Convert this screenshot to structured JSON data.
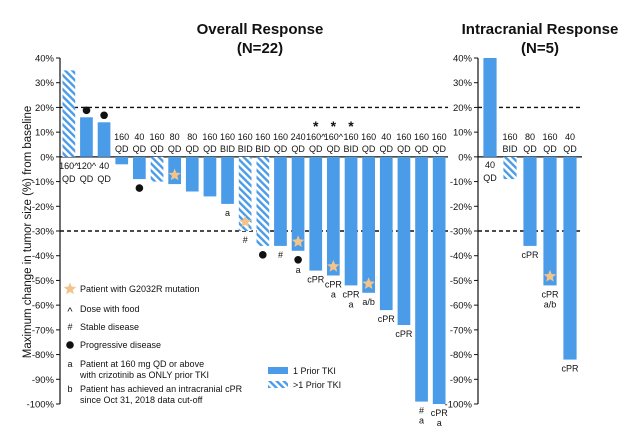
{
  "chart_data": [
    {
      "type": "bar",
      "panel": "overall",
      "title": "Overall Response",
      "subtitle": "(N=22)",
      "ylabel": "Maximum change in tumor size (%) from baseline",
      "ylim": [
        -100,
        40
      ],
      "yticks": [
        40,
        30,
        20,
        10,
        0,
        -10,
        -20,
        -30,
        -40,
        -50,
        -60,
        -70,
        -80,
        -90,
        -100
      ],
      "reference_lines": [
        20,
        -30
      ],
      "bars": [
        {
          "value": 35,
          "dose": [
            "160^",
            "QD"
          ],
          "hatched": true,
          "marks": []
        },
        {
          "value": 16,
          "dose": [
            "120^",
            "QD"
          ],
          "hatched": false,
          "marks": [
            "progressive"
          ]
        },
        {
          "value": 14,
          "dose": [
            "40",
            "QD"
          ],
          "hatched": false,
          "marks": [
            "progressive"
          ]
        },
        {
          "value": -3,
          "dose": [
            "160",
            "QD"
          ],
          "hatched": false,
          "marks": []
        },
        {
          "value": -9,
          "dose": [
            "40",
            "QD"
          ],
          "hatched": false,
          "marks": [
            "progressive"
          ]
        },
        {
          "value": -10,
          "dose": [
            "160",
            "QD"
          ],
          "hatched": true,
          "marks": []
        },
        {
          "value": -11,
          "dose": [
            "80",
            "QD"
          ],
          "hatched": false,
          "marks": [
            "star"
          ]
        },
        {
          "value": -14,
          "dose": [
            "80",
            "QD"
          ],
          "hatched": false,
          "marks": []
        },
        {
          "value": -16,
          "dose": [
            "160",
            "QD"
          ],
          "hatched": false,
          "marks": []
        },
        {
          "value": -19,
          "dose": [
            "160",
            "BID"
          ],
          "hatched": false,
          "marks": [
            "a"
          ]
        },
        {
          "value": -30,
          "dose": [
            "160",
            "BID"
          ],
          "hatched": true,
          "marks": [
            "star",
            "#"
          ]
        },
        {
          "value": -36,
          "dose": [
            "160",
            "BID"
          ],
          "hatched": true,
          "marks": [
            "progressive"
          ]
        },
        {
          "value": -36,
          "dose": [
            "160",
            "QD"
          ],
          "hatched": false,
          "marks": [
            "#"
          ]
        },
        {
          "value": -38,
          "dose": [
            "240",
            "QD"
          ],
          "hatched": false,
          "marks": [
            "star",
            "progressive",
            "a"
          ]
        },
        {
          "value": -46,
          "dose": [
            "160^",
            "QD"
          ],
          "hatched": false,
          "marks": [
            "cPR"
          ],
          "note": "*"
        },
        {
          "value": -48,
          "dose": [
            "160^",
            "QD"
          ],
          "hatched": false,
          "marks": [
            "star",
            "cPR",
            "a"
          ],
          "note": "*"
        },
        {
          "value": -52,
          "dose": [
            "160",
            "BID"
          ],
          "hatched": false,
          "marks": [
            "cPR",
            "a"
          ],
          "note": "*"
        },
        {
          "value": -55,
          "dose": [
            "160",
            "QD"
          ],
          "hatched": false,
          "marks": [
            "star",
            "a/b"
          ]
        },
        {
          "value": -62,
          "dose": [
            "40",
            "QD"
          ],
          "hatched": false,
          "marks": [
            "cPR"
          ]
        },
        {
          "value": -68,
          "dose": [
            "160",
            "QD"
          ],
          "hatched": false,
          "marks": [
            "cPR"
          ]
        },
        {
          "value": -99,
          "dose": [
            "160",
            "QD"
          ],
          "hatched": false,
          "marks": [
            "#",
            "a"
          ]
        },
        {
          "value": -100,
          "dose": [
            "160",
            "QD"
          ],
          "hatched": false,
          "marks": [
            "cPR",
            "a"
          ]
        }
      ]
    },
    {
      "type": "bar",
      "panel": "intracranial",
      "title": "Intracranial Response",
      "subtitle": "(N=5)",
      "ylim": [
        -100,
        40
      ],
      "yticks": [
        40,
        30,
        20,
        10,
        0,
        -10,
        -20,
        -30,
        -40,
        -50,
        -60,
        -70,
        -80,
        -90,
        -100
      ],
      "reference_lines": [
        20,
        -30
      ],
      "bars": [
        {
          "value": 40,
          "dose": [
            "40",
            "QD"
          ],
          "hatched": false,
          "marks": []
        },
        {
          "value": -9,
          "dose": [
            "160",
            "BID"
          ],
          "hatched": true,
          "marks": []
        },
        {
          "value": -36,
          "dose": [
            "80",
            "QD"
          ],
          "hatched": false,
          "marks": [
            "cPR"
          ]
        },
        {
          "value": -52,
          "dose": [
            "160",
            "QD"
          ],
          "hatched": false,
          "marks": [
            "star",
            "cPR",
            "a/b"
          ]
        },
        {
          "value": -82,
          "dose": [
            "40",
            "QD"
          ],
          "hatched": false,
          "marks": [
            "cPR"
          ]
        }
      ]
    }
  ],
  "legend": {
    "symbols": [
      {
        "symbol": "star",
        "label": "Patient with G2032R mutation"
      },
      {
        "symbol": "^",
        "label": "Dose with food"
      },
      {
        "symbol": "#",
        "label": "Stable disease"
      },
      {
        "symbol": "dot",
        "label": "Progressive disease"
      },
      {
        "symbol": "a",
        "label": "Patient at 160 mg QD or above",
        "label2": "with crizotinib as ONLY prior TKI"
      },
      {
        "symbol": "b",
        "label": "Patient has achieved an intracranial cPR",
        "label2": "since Oct 31, 2018 data cut-off"
      }
    ],
    "series": [
      {
        "name": "1 Prior TKI",
        "pattern": "solid"
      },
      {
        "name": ">1 Prior TKI",
        "pattern": "hatched"
      }
    ]
  },
  "colors": {
    "bar": "#4a9be8",
    "star": "#f2c48a",
    "axis": "#111111"
  }
}
